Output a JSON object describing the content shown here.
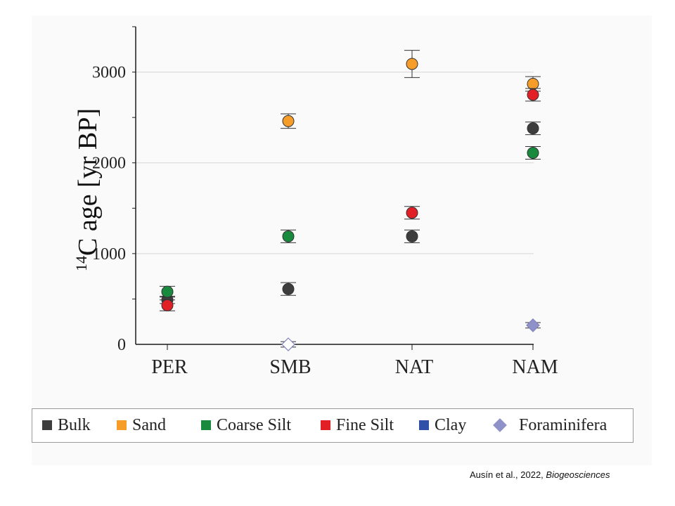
{
  "chart_data": {
    "type": "scatter",
    "title": "",
    "xlabel": "",
    "ylabel_superscript": "14",
    "ylabel": "C age [yr BP]",
    "categories": [
      "PER",
      "SMB",
      "NAT",
      "NAM"
    ],
    "ylim": [
      0,
      3500
    ],
    "yticks": [
      0,
      1000,
      2000,
      3000
    ],
    "grid": "horizontal",
    "legend_position": "bottom",
    "series": [
      {
        "name": "Bulk",
        "color": "#3d3d3d",
        "marker": "circle",
        "points": [
          {
            "x": "PER",
            "y": 490,
            "err": 40
          },
          {
            "x": "SMB",
            "y": 610,
            "err": 70
          },
          {
            "x": "NAT",
            "y": 1190,
            "err": 70
          },
          {
            "x": "NAM",
            "y": 2380,
            "err": 70
          }
        ]
      },
      {
        "name": "Sand",
        "color": "#f59d28",
        "marker": "circle",
        "points": [
          {
            "x": "SMB",
            "y": 2460,
            "err": 80
          },
          {
            "x": "NAT",
            "y": 3090,
            "err": 150
          },
          {
            "x": "NAM",
            "y": 2870,
            "err": 80
          }
        ]
      },
      {
        "name": "Coarse Silt",
        "color": "#178a3e",
        "marker": "circle",
        "points": [
          {
            "x": "PER",
            "y": 580,
            "err": 60
          },
          {
            "x": "SMB",
            "y": 1190,
            "err": 70
          },
          {
            "x": "NAM",
            "y": 2110,
            "err": 70
          }
        ]
      },
      {
        "name": "Fine Silt",
        "color": "#e31f26",
        "marker": "circle",
        "points": [
          {
            "x": "PER",
            "y": 430,
            "err": 60
          },
          {
            "x": "NAT",
            "y": 1450,
            "err": 70
          },
          {
            "x": "NAM",
            "y": 2750,
            "err": 70
          }
        ]
      },
      {
        "name": "Clay",
        "color": "#2f4fa8",
        "marker": "circle",
        "points": []
      },
      {
        "name": "Foraminifera",
        "color": "#8e92c9",
        "marker": "diamond",
        "points": [
          {
            "x": "SMB",
            "y": 0,
            "err": 30,
            "hollow": true
          },
          {
            "x": "NAM",
            "y": 210,
            "err": 30,
            "hollow": false
          }
        ]
      }
    ]
  },
  "credit": {
    "authors": "Ausín et al., 2022, ",
    "journal": "Biogeosciences"
  }
}
